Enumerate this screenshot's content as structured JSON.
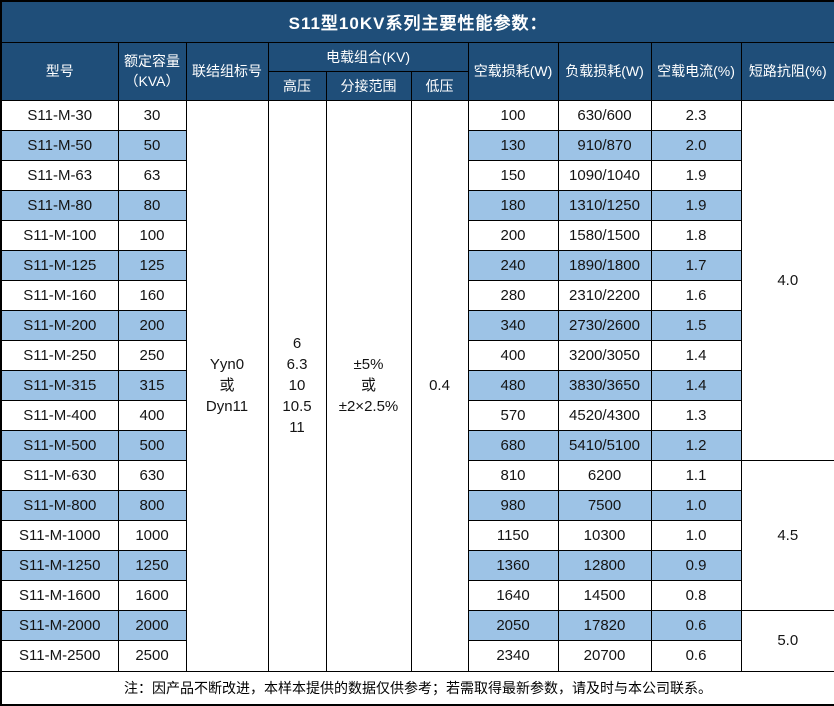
{
  "title": "S11型10KV系列主要性能参数：",
  "header": {
    "model": "型号",
    "capacity_line1": "额定容量",
    "capacity_line2": "（KVA）",
    "connection": "联结组标号",
    "voltage_group": "电载组合(KV)",
    "hv": "高压",
    "tap_range": "分接范围",
    "lv": "低压",
    "no_load_loss": "空载损耗(W)",
    "load_loss": "负载损耗(W)",
    "no_load_current": "空载电流(%)",
    "impedance": "短路抗阻(%)"
  },
  "merged_cells": {
    "connection_lines": [
      "Yyn0",
      "或",
      "Dyn11"
    ],
    "hv_lines": [
      "6",
      "6.3",
      "10",
      "10.5",
      "11"
    ],
    "tap_range_lines": [
      "±5%",
      "或",
      "±2×2.5%"
    ],
    "lv": "0.4"
  },
  "impedance_groups": [
    {
      "value": "4.0",
      "row_span": 12
    },
    {
      "value": "4.5",
      "row_span": 5
    },
    {
      "value": "5.0",
      "row_span": 2
    }
  ],
  "rows": [
    {
      "model": "S11-M-30",
      "capacity": "30",
      "no_load_loss": "100",
      "load_loss": "630/600",
      "no_load_current": "2.3"
    },
    {
      "model": "S11-M-50",
      "capacity": "50",
      "no_load_loss": "130",
      "load_loss": "910/870",
      "no_load_current": "2.0"
    },
    {
      "model": "S11-M-63",
      "capacity": "63",
      "no_load_loss": "150",
      "load_loss": "1090/1040",
      "no_load_current": "1.9"
    },
    {
      "model": "S11-M-80",
      "capacity": "80",
      "no_load_loss": "180",
      "load_loss": "1310/1250",
      "no_load_current": "1.9"
    },
    {
      "model": "S11-M-100",
      "capacity": "100",
      "no_load_loss": "200",
      "load_loss": "1580/1500",
      "no_load_current": "1.8"
    },
    {
      "model": "S11-M-125",
      "capacity": "125",
      "no_load_loss": "240",
      "load_loss": "1890/1800",
      "no_load_current": "1.7"
    },
    {
      "model": "S11-M-160",
      "capacity": "160",
      "no_load_loss": "280",
      "load_loss": "2310/2200",
      "no_load_current": "1.6"
    },
    {
      "model": "S11-M-200",
      "capacity": "200",
      "no_load_loss": "340",
      "load_loss": "2730/2600",
      "no_load_current": "1.5"
    },
    {
      "model": "S11-M-250",
      "capacity": "250",
      "no_load_loss": "400",
      "load_loss": "3200/3050",
      "no_load_current": "1.4"
    },
    {
      "model": "S11-M-315",
      "capacity": "315",
      "no_load_loss": "480",
      "load_loss": "3830/3650",
      "no_load_current": "1.4"
    },
    {
      "model": "S11-M-400",
      "capacity": "400",
      "no_load_loss": "570",
      "load_loss": "4520/4300",
      "no_load_current": "1.3"
    },
    {
      "model": "S11-M-500",
      "capacity": "500",
      "no_load_loss": "680",
      "load_loss": "5410/5100",
      "no_load_current": "1.2"
    },
    {
      "model": "S11-M-630",
      "capacity": "630",
      "no_load_loss": "810",
      "load_loss": "6200",
      "no_load_current": "1.1"
    },
    {
      "model": "S11-M-800",
      "capacity": "800",
      "no_load_loss": "980",
      "load_loss": "7500",
      "no_load_current": "1.0"
    },
    {
      "model": "S11-M-1000",
      "capacity": "1000",
      "no_load_loss": "1150",
      "load_loss": "10300",
      "no_load_current": "1.0"
    },
    {
      "model": "S11-M-1250",
      "capacity": "1250",
      "no_load_loss": "1360",
      "load_loss": "12800",
      "no_load_current": "0.9"
    },
    {
      "model": "S11-M-1600",
      "capacity": "1600",
      "no_load_loss": "1640",
      "load_loss": "14500",
      "no_load_current": "0.8"
    },
    {
      "model": "S11-M-2000",
      "capacity": "2000",
      "no_load_loss": "2050",
      "load_loss": "17820",
      "no_load_current": "0.6"
    },
    {
      "model": "S11-M-2500",
      "capacity": "2500",
      "no_load_loss": "2340",
      "load_loss": "20700",
      "no_load_current": "0.6"
    }
  ],
  "note": "注：因产品不断改进，本样本提供的数据仅供参考；若需取得最新参数，请及时与本公司联系。",
  "colors": {
    "header_bg": "#1F4E79",
    "stripe_bg": "#9DC3E6",
    "border": "#000000",
    "header_text": "#FFFFFF",
    "body_text": "#141414"
  }
}
